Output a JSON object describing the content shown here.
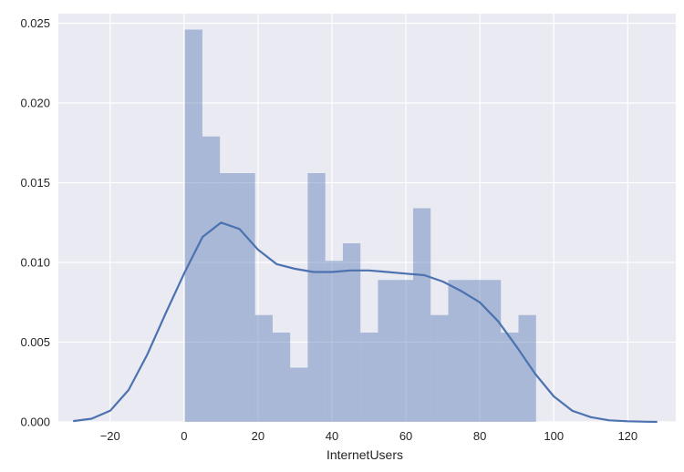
{
  "chart_data": {
    "type": "bar",
    "subtype": "histogram with kde overlay",
    "title": "",
    "xlabel": "InternetUsers",
    "ylabel": "",
    "xlim": [
      -34,
      133
    ],
    "ylim": [
      0,
      0.0256
    ],
    "xticks": [
      -20,
      0,
      20,
      40,
      60,
      80,
      100,
      120
    ],
    "yticks": [
      0.0,
      0.005,
      0.01,
      0.015,
      0.02,
      0.025
    ],
    "ytick_labels": [
      "0.000",
      "0.005",
      "0.010",
      "0.015",
      "0.020",
      "0.025"
    ],
    "grid": true,
    "legend": "none",
    "bin_edges": [
      0.2,
      4.95,
      9.7,
      14.45,
      19.2,
      23.95,
      28.7,
      33.45,
      38.2,
      42.95,
      47.7,
      52.45,
      57.2,
      61.95,
      66.7,
      71.45,
      76.2,
      80.95,
      85.7,
      90.45,
      95.2
    ],
    "values": [
      0.0246,
      0.0179,
      0.0156,
      0.0156,
      0.0067,
      0.0056,
      0.0034,
      0.0156,
      0.0101,
      0.0112,
      0.0056,
      0.0089,
      0.0089,
      0.0134,
      0.0067,
      0.0089,
      0.0089,
      0.0089,
      0.0056,
      0.0067
    ],
    "kde": {
      "x": [
        -30,
        -25,
        -20,
        -15,
        -10,
        -5,
        0,
        5,
        10,
        15,
        20,
        25,
        30,
        35,
        40,
        45,
        50,
        55,
        60,
        65,
        70,
        75,
        80,
        85,
        90,
        95,
        100,
        105,
        110,
        115,
        120,
        125,
        128
      ],
      "y": [
        5e-05,
        0.0002,
        0.0007,
        0.002,
        0.0042,
        0.0068,
        0.0093,
        0.0116,
        0.0125,
        0.0121,
        0.0108,
        0.0099,
        0.0096,
        0.0094,
        0.0094,
        0.0095,
        0.0095,
        0.0094,
        0.0093,
        0.0092,
        0.0088,
        0.0082,
        0.0075,
        0.0063,
        0.0047,
        0.003,
        0.0016,
        0.0007,
        0.0003,
        0.0001,
        4e-05,
        1e-05,
        0.0
      ]
    },
    "colors": {
      "background": "#eaeaf2",
      "grid": "#ffffff",
      "bars": "#4c72b0",
      "kde": "#4c72b0"
    }
  }
}
